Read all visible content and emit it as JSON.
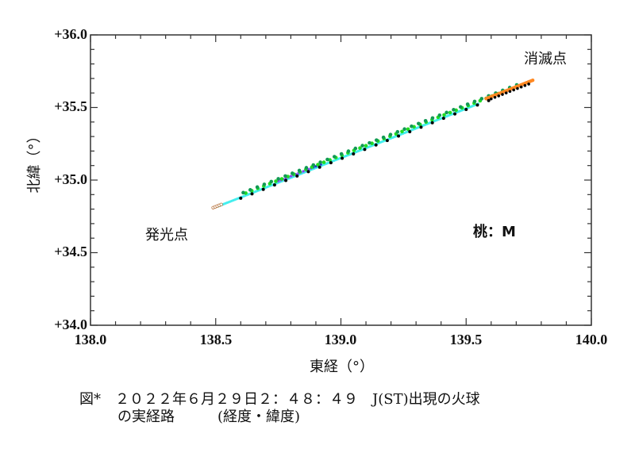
{
  "chart_data": {
    "type": "scatter",
    "title": "",
    "xlabel": "東経（°）",
    "ylabel": "北緯（°）",
    "xlim": [
      138.0,
      140.0
    ],
    "ylim": [
      34.0,
      36.0
    ],
    "xticks": [
      "138.0",
      "138.5",
      "139.0",
      "139.5",
      "140.0"
    ],
    "yticks": [
      "+34.0",
      "+34.5",
      "+35.0",
      "+35.5",
      "+36.0"
    ],
    "grid": false,
    "annotations": [
      {
        "text": "消滅点",
        "x": 139.85,
        "y": 35.85
      },
      {
        "text": "発光点",
        "x": 138.35,
        "y": 34.6
      },
      {
        "text": "桃：M",
        "x": 139.6,
        "y": 34.6
      }
    ],
    "series": [
      {
        "name": "start (brown)",
        "color": "#c8864a",
        "x": [
          138.49,
          138.52
        ],
        "y": [
          34.81,
          34.82
        ]
      },
      {
        "name": "cyan",
        "color": "#33e6e6",
        "x": [
          138.52,
          139.5
        ],
        "y": [
          34.82,
          35.48
        ]
      },
      {
        "name": "green",
        "color": "#22cc22",
        "x": [
          138.62,
          139.68
        ],
        "y": [
          34.89,
          35.62
        ]
      },
      {
        "name": "dark-green",
        "color": "#11995a",
        "x": [
          138.6,
          139.7
        ],
        "y": [
          34.88,
          35.63
        ]
      },
      {
        "name": "black",
        "color": "#000000",
        "x": [
          138.6,
          139.75
        ],
        "y": [
          34.87,
          35.67
        ]
      },
      {
        "name": "blue/purple",
        "color": "#3344cc",
        "x": [
          138.75,
          138.92
        ],
        "y": [
          34.97,
          35.1
        ]
      },
      {
        "name": "end (orange)",
        "color": "#ff8822",
        "x": [
          139.6,
          139.77
        ],
        "y": [
          35.59,
          35.68
        ]
      }
    ],
    "path": {
      "start": {
        "lon": 138.49,
        "lat": 34.81
      },
      "end": {
        "lon": 139.77,
        "lat": 35.68
      }
    }
  },
  "labels": {
    "start_point": "発光点",
    "end_point": "消滅点",
    "station": "桃：M",
    "xlabel": "東経（°）",
    "ylabel": "北緯（°）"
  },
  "caption": {
    "line1": "図*　２０２２年６月２９日２：４８：４９　J(ST)出現の火球",
    "line2": "の実経路　　　(経度・緯度)"
  }
}
